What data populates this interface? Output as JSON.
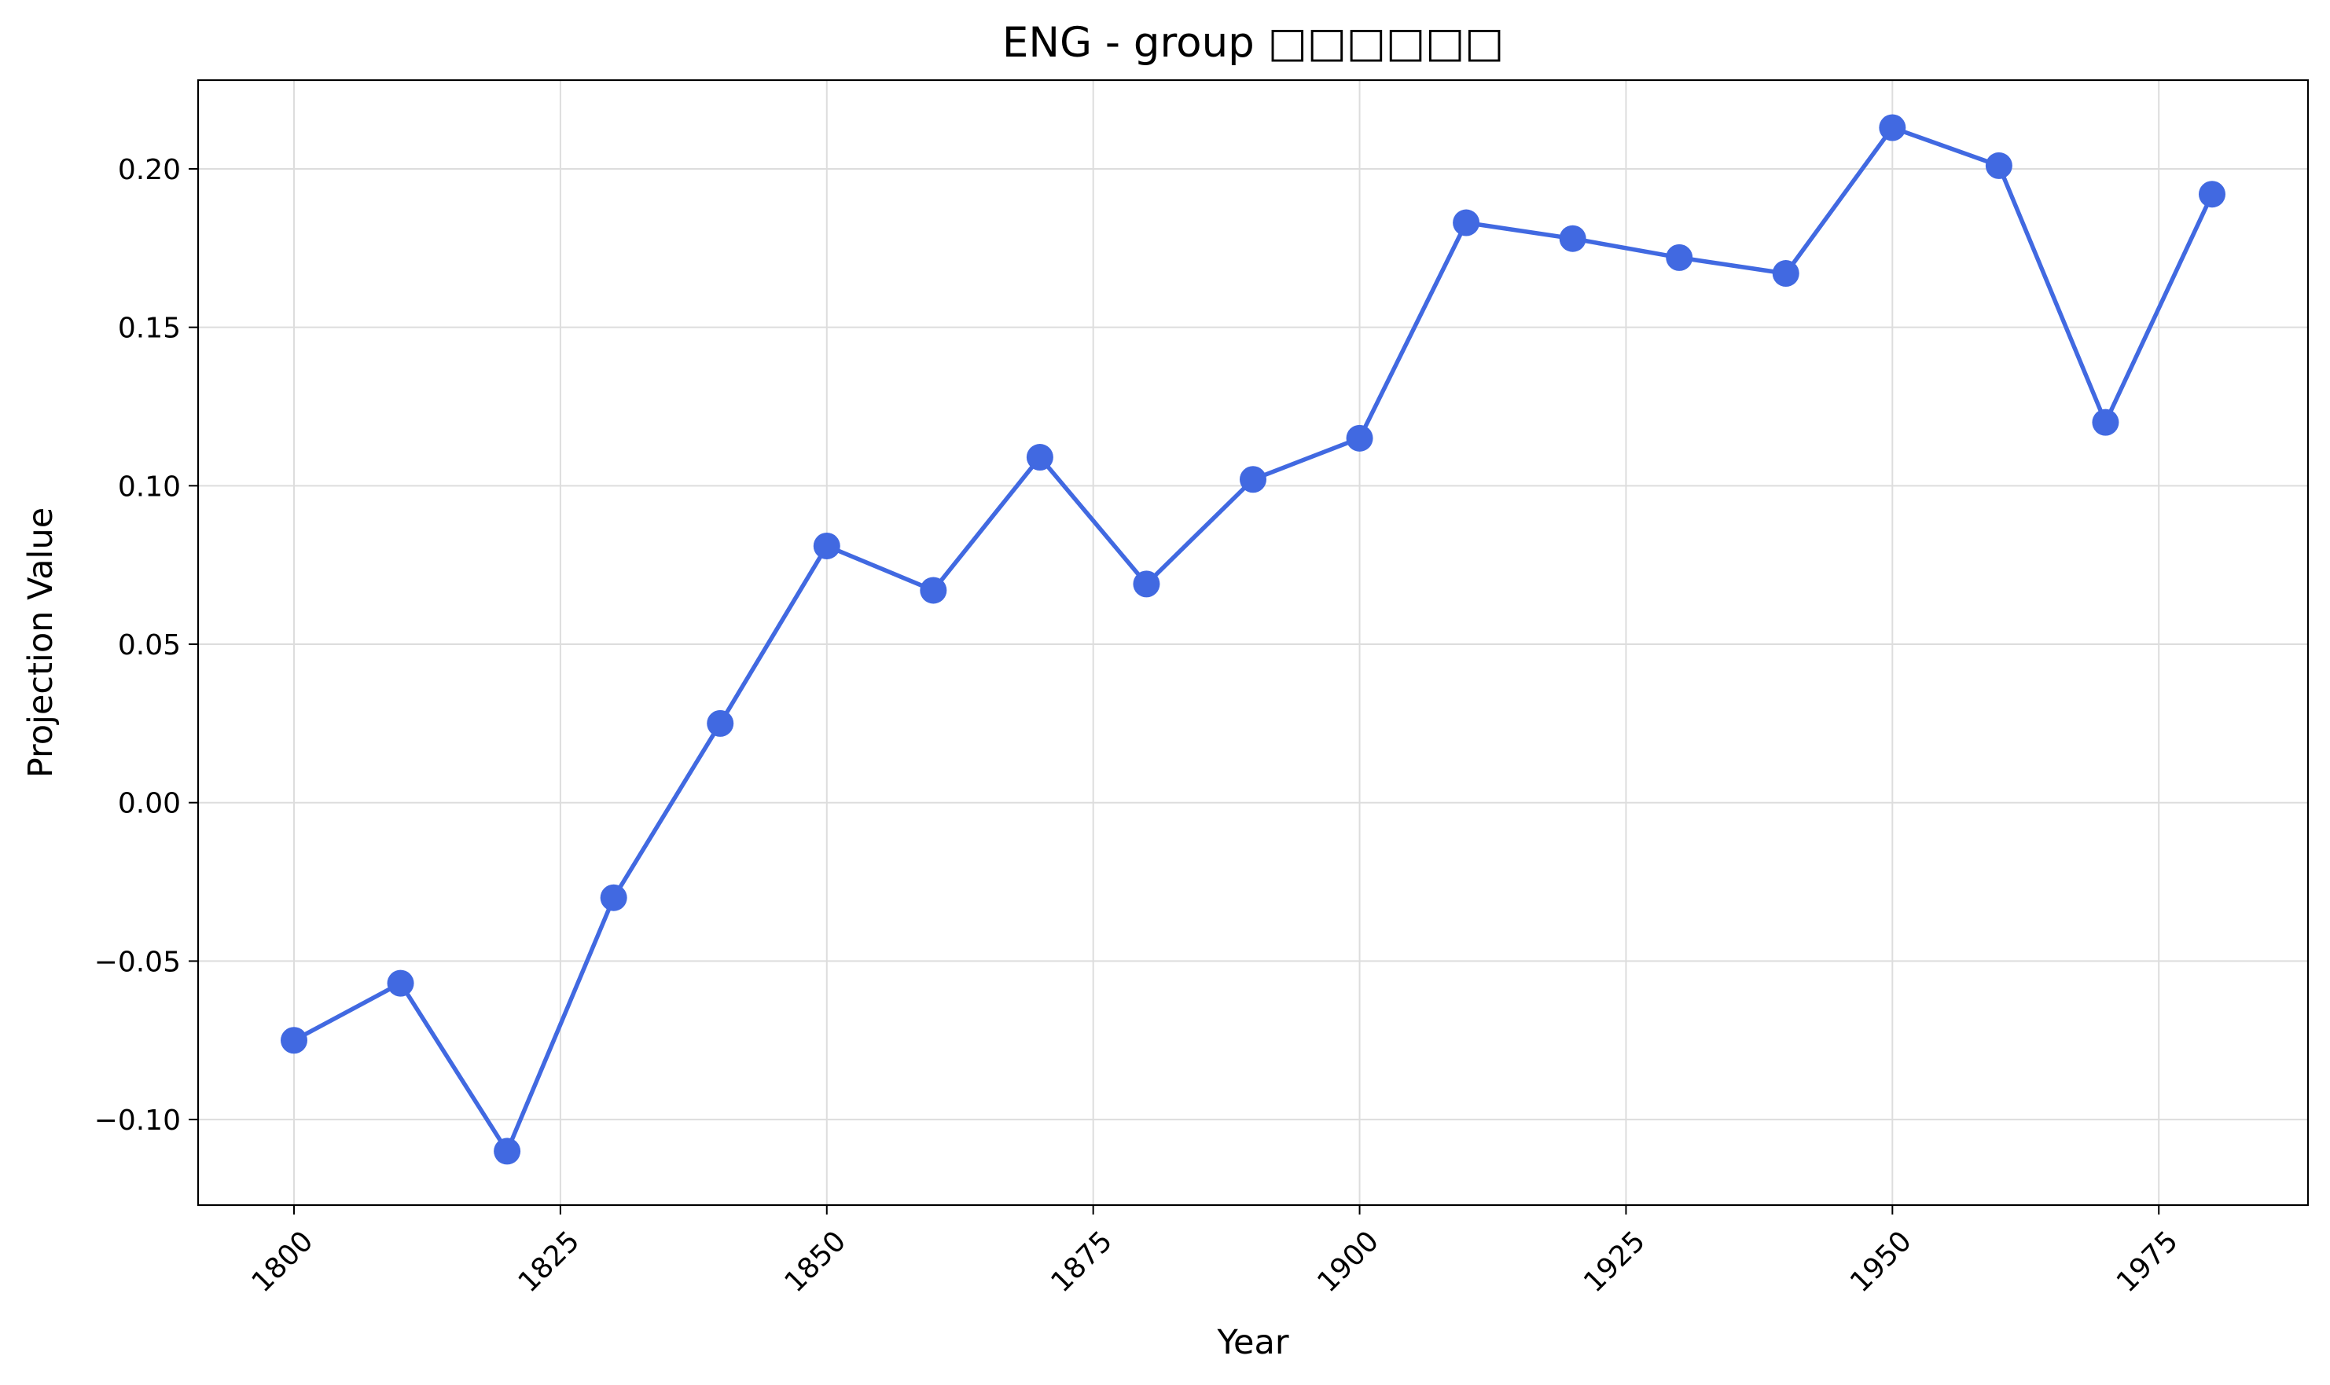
{
  "chart_data": {
    "type": "line",
    "title": "ENG - group □□□□□□",
    "xlabel": "Year",
    "ylabel": "Projection Value",
    "xlim": [
      1791,
      1989
    ],
    "ylim": [
      -0.127,
      0.228
    ],
    "x_ticks": [
      1800,
      1825,
      1850,
      1875,
      1900,
      1925,
      1950,
      1975
    ],
    "x_tick_labels": [
      "1800",
      "1825",
      "1850",
      "1875",
      "1900",
      "1925",
      "1950",
      "1975"
    ],
    "y_ticks": [
      -0.1,
      -0.05,
      0.0,
      0.05,
      0.1,
      0.15,
      0.2
    ],
    "y_tick_labels": [
      "−0.10",
      "−0.05",
      "0.00",
      "0.05",
      "0.10",
      "0.15",
      "0.20"
    ],
    "grid": true,
    "series": [
      {
        "color": "#4169e1",
        "marker": "circle",
        "x": [
          1800,
          1810,
          1820,
          1830,
          1840,
          1850,
          1860,
          1870,
          1880,
          1890,
          1900,
          1910,
          1920,
          1930,
          1940,
          1950,
          1960,
          1970,
          1980
        ],
        "y": [
          -0.075,
          -0.057,
          -0.11,
          -0.03,
          0.025,
          0.081,
          0.067,
          0.109,
          0.069,
          0.102,
          0.115,
          0.183,
          0.178,
          0.172,
          0.167,
          0.213,
          0.201,
          0.12,
          0.192
        ]
      }
    ]
  }
}
